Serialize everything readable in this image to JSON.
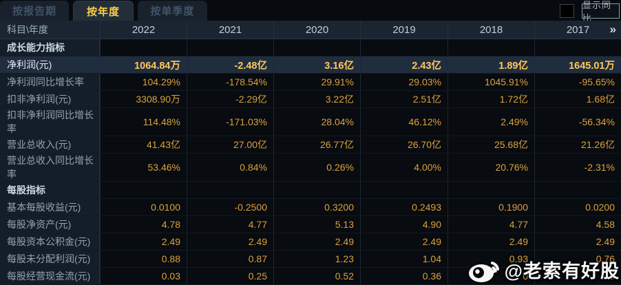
{
  "tabs": [
    {
      "label": "按报告期",
      "active": false
    },
    {
      "label": "按年度",
      "active": true
    },
    {
      "label": "按单季度",
      "active": false
    }
  ],
  "controls": {
    "compare_checkbox_checked": false,
    "compare_label": "显示同比"
  },
  "table": {
    "corner": "科目\\年度",
    "years": [
      "2022",
      "2021",
      "2020",
      "2019",
      "2018",
      "2017"
    ],
    "more_icon": "»",
    "rows": [
      {
        "type": "section",
        "highlight": false,
        "label": "成长能力指标",
        "values": [
          "",
          "",
          "",
          "",
          "",
          ""
        ]
      },
      {
        "type": "data",
        "highlight": true,
        "label": "净利润(元)",
        "values": [
          "1064.84万",
          "-2.48亿",
          "3.16亿",
          "2.43亿",
          "1.89亿",
          "1645.01万"
        ]
      },
      {
        "type": "data",
        "highlight": false,
        "label": "净利润同比增长率",
        "values": [
          "104.29%",
          "-178.54%",
          "29.91%",
          "29.03%",
          "1045.91%",
          "-95.65%"
        ]
      },
      {
        "type": "data",
        "highlight": false,
        "label": "扣非净利润(元)",
        "values": [
          "3308.90万",
          "-2.29亿",
          "3.22亿",
          "2.51亿",
          "1.72亿",
          "1.68亿"
        ]
      },
      {
        "type": "data",
        "highlight": false,
        "label": "扣非净利润同比增长率",
        "values": [
          "114.48%",
          "-171.03%",
          "28.04%",
          "46.12%",
          "2.49%",
          "-56.34%"
        ]
      },
      {
        "type": "data",
        "highlight": false,
        "label": "营业总收入(元)",
        "values": [
          "41.43亿",
          "27.00亿",
          "26.77亿",
          "26.70亿",
          "25.68亿",
          "21.26亿"
        ]
      },
      {
        "type": "data",
        "highlight": false,
        "label": "营业总收入同比增长率",
        "values": [
          "53.46%",
          "0.84%",
          "0.26%",
          "4.00%",
          "20.76%",
          "-2.31%"
        ]
      },
      {
        "type": "section",
        "highlight": false,
        "label": "每股指标",
        "values": [
          "",
          "",
          "",
          "",
          "",
          ""
        ]
      },
      {
        "type": "data",
        "highlight": false,
        "label": "基本每股收益(元)",
        "values": [
          "0.0100",
          "-0.2500",
          "0.3200",
          "0.2493",
          "0.1900",
          "0.0200"
        ]
      },
      {
        "type": "data",
        "highlight": false,
        "label": "每股净资产(元)",
        "values": [
          "4.78",
          "4.77",
          "5.13",
          "4.90",
          "4.77",
          "4.58"
        ]
      },
      {
        "type": "data",
        "highlight": false,
        "label": "每股资本公积金(元)",
        "values": [
          "2.49",
          "2.49",
          "2.49",
          "2.49",
          "2.49",
          "2.49"
        ]
      },
      {
        "type": "data",
        "highlight": false,
        "label": "每股未分配利润(元)",
        "values": [
          "0.88",
          "0.87",
          "1.23",
          "1.04",
          "0.93",
          "0.76"
        ]
      },
      {
        "type": "data",
        "highlight": false,
        "label": "每股经营现金流(元)",
        "values": [
          "0.03",
          "0.25",
          "0.52",
          "0.36",
          "0",
          "9"
        ]
      }
    ]
  },
  "watermark": {
    "icon": "weibo-icon",
    "text": "@老索有好股"
  },
  "colors": {
    "accent_yellow": "#ffd04a",
    "value_gold": "#dca23f",
    "highlight_value_gold": "#ffc85a",
    "highlight_row_bg": "#202d3f",
    "label_col_bg": "#141e29",
    "header_bg": "#1a2531",
    "page_bg": "#05080c"
  }
}
